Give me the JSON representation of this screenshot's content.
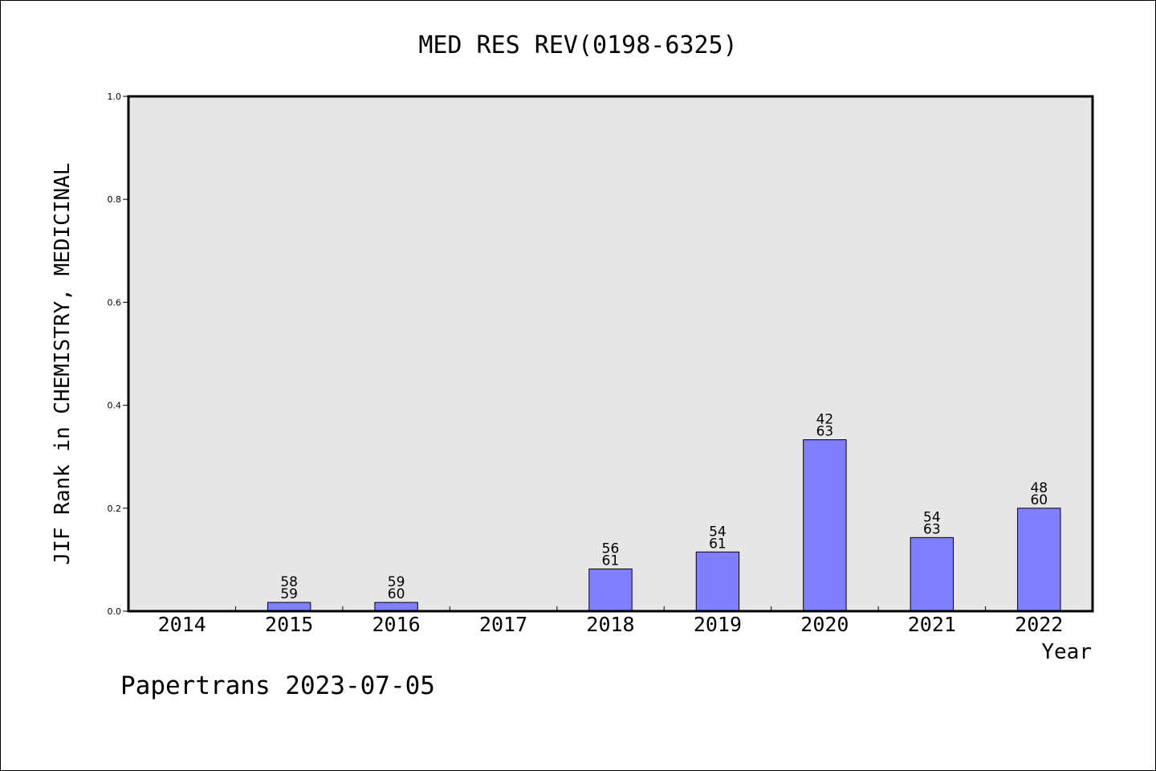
{
  "chart_data": {
    "type": "bar",
    "title": "MED RES REV(0198-6325)",
    "xlabel": "Year",
    "ylabel": "JIF Rank in CHEMISTRY, MEDICINAL",
    "ylim": [
      0,
      1.0
    ],
    "yticks": [
      "0.0",
      "0.2",
      "0.4",
      "0.6",
      "0.8",
      "1.0"
    ],
    "categories": [
      "2014",
      "2015",
      "2016",
      "2017",
      "2018",
      "2019",
      "2020",
      "2021",
      "2022"
    ],
    "values": [
      0,
      0.017,
      0.017,
      0,
      0.082,
      0.115,
      0.333,
      0.143,
      0.2
    ],
    "bar_labels": [
      null,
      {
        "top": "58",
        "bottom": "59"
      },
      {
        "top": "59",
        "bottom": "60"
      },
      null,
      {
        "top": "56",
        "bottom": "61"
      },
      {
        "top": "54",
        "bottom": "61"
      },
      {
        "top": "42",
        "bottom": "63"
      },
      {
        "top": "54",
        "bottom": "63"
      },
      {
        "top": "48",
        "bottom": "60"
      }
    ],
    "grid": false,
    "colors": {
      "bar": "#8080ff",
      "plot_background": "#e6e6e6",
      "axis": "#000000"
    }
  },
  "footer": "Papertrans 2023-07-05"
}
